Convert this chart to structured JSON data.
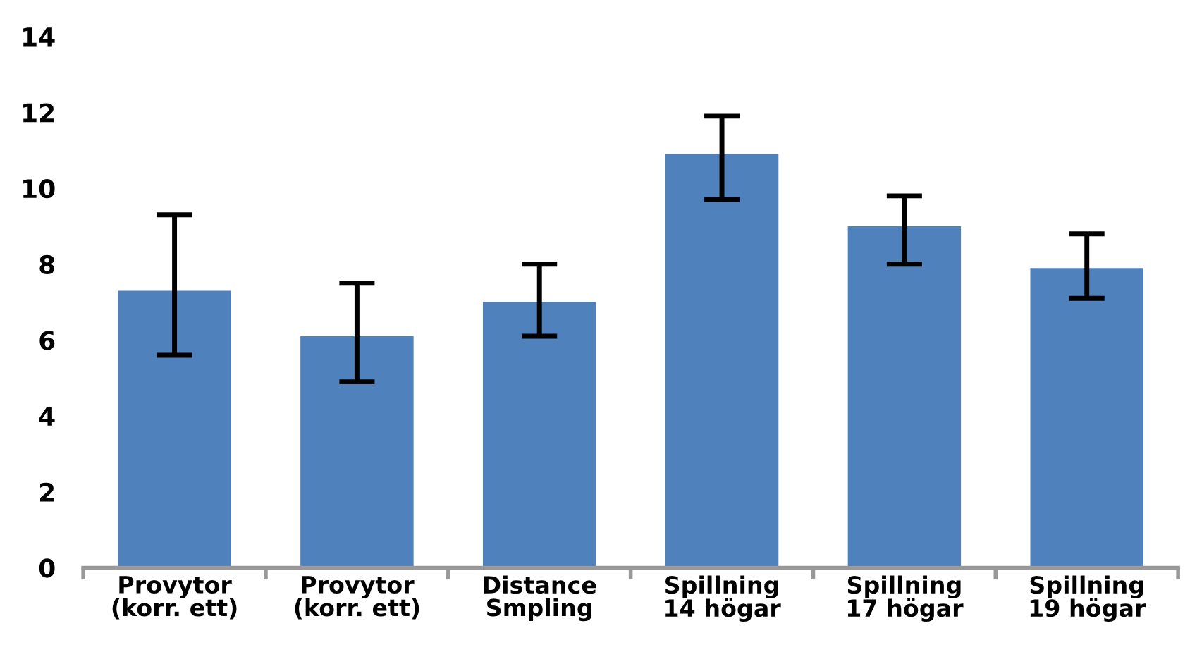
{
  "chart_data": {
    "type": "bar",
    "categories": [
      "Provytor\n(korr. ett)",
      "Provytor\n(korr. ett)",
      "Distance\nSmpling",
      "Spillning\n14 högar",
      "Spillning\n17 högar",
      "Spillning\n19 högar"
    ],
    "values": [
      7.3,
      6.1,
      7.0,
      10.9,
      9.0,
      7.9
    ],
    "errors": [
      [
        5.6,
        9.3
      ],
      [
        4.9,
        7.5
      ],
      [
        6.1,
        8.0
      ],
      [
        9.7,
        11.9
      ],
      [
        8.0,
        9.8
      ],
      [
        7.1,
        8.8
      ]
    ],
    "color": "#4f81bd",
    "ylim": [
      0,
      14
    ],
    "yticks": [
      0,
      2,
      4,
      6,
      8,
      10,
      12,
      14
    ],
    "grid": false
  }
}
